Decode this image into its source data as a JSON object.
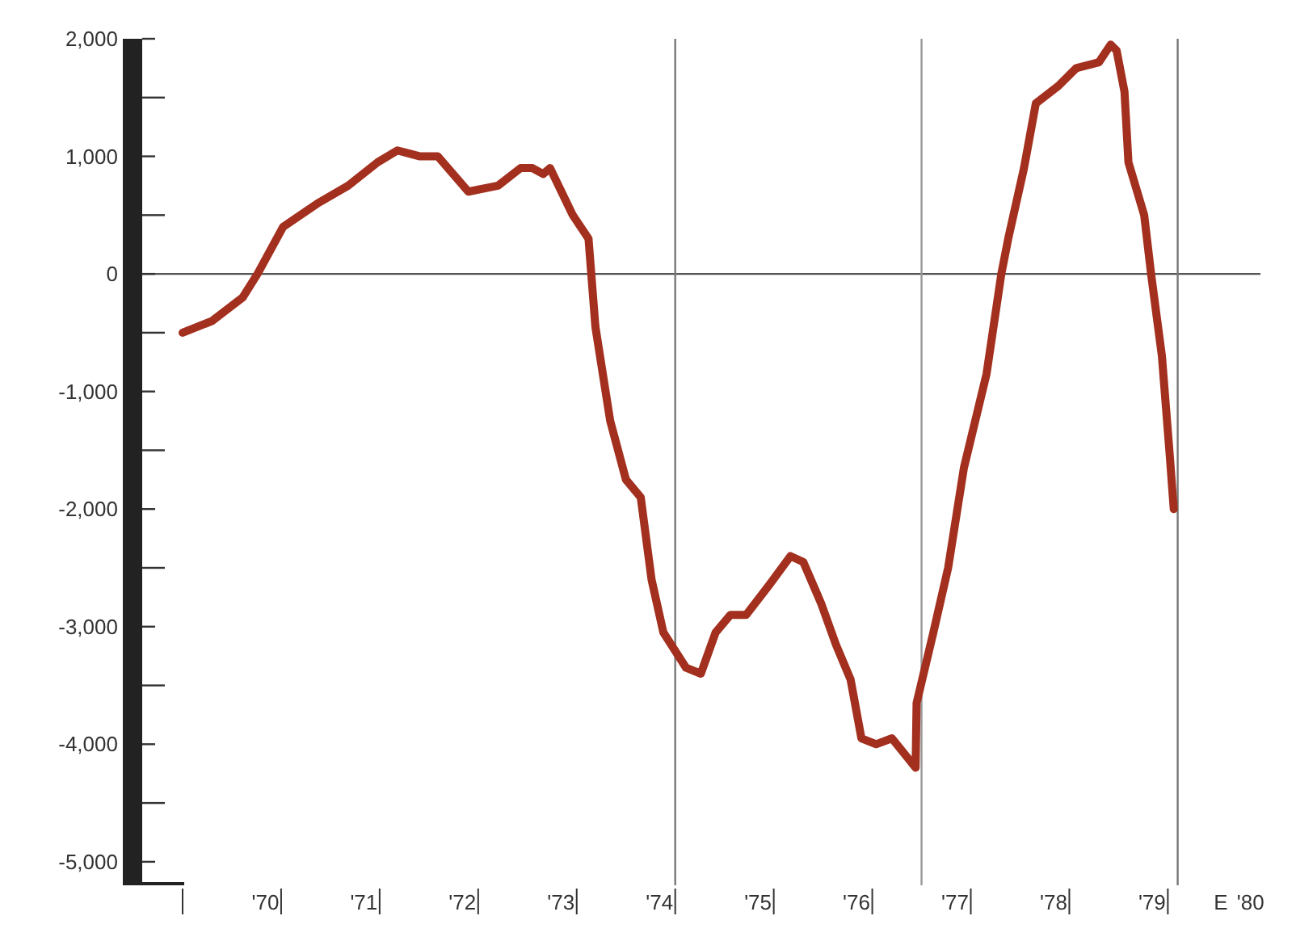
{
  "chart_data": {
    "type": "line",
    "x": [
      1969.16,
      1969.46,
      1969.77,
      1969.92,
      1970.18,
      1970.53,
      1970.84,
      1971.14,
      1971.34,
      1971.57,
      1971.75,
      1972.06,
      1972.36,
      1972.59,
      1972.71,
      1972.82,
      1972.89,
      1973.12,
      1973.28,
      1973.35,
      1973.5,
      1973.66,
      1973.81,
      1973.92,
      1974.04,
      1974.27,
      1974.42,
      1974.57,
      1974.72,
      1974.88,
      1975.11,
      1975.33,
      1975.46,
      1975.64,
      1975.79,
      1975.94,
      1976.05,
      1976.2,
      1976.36,
      1976.6,
      1976.61,
      1976.78,
      1976.93,
      1977.09,
      1977.32,
      1977.47,
      1977.54,
      1977.7,
      1977.82,
      1978.05,
      1978.23,
      1978.46,
      1978.58,
      1978.64,
      1978.72,
      1978.76,
      1978.92,
      1978.99,
      1979.1,
      1979.18,
      1979.22
    ],
    "series": [
      {
        "color": "#a3301f",
        "values": [
          -500,
          -400,
          -200,
          0,
          400,
          600,
          750,
          950,
          1050,
          1000,
          1000,
          700,
          750,
          900,
          900,
          850,
          900,
          500,
          300,
          -450,
          -1250,
          -1750,
          -1900,
          -2600,
          -3050,
          -3350,
          -3400,
          -3050,
          -2900,
          -2900,
          -2650,
          -2400,
          -2450,
          -2800,
          -3150,
          -3450,
          -3950,
          -4000,
          -3950,
          -4200,
          -3650,
          -3050,
          -2500,
          -1650,
          -850,
          0,
          300,
          900,
          1450,
          1600,
          1750,
          1800,
          1950,
          1900,
          1550,
          950,
          500,
          0,
          -700,
          -1550,
          -2000
        ]
      }
    ],
    "xlim": [
      1968.75,
      1980.1
    ],
    "xticks": [
      {
        "value": 1969.16,
        "label": null
      },
      {
        "value": 1970,
        "label": "'70"
      },
      {
        "value": 1970.16,
        "label": null
      },
      {
        "value": 1971,
        "label": "'71"
      },
      {
        "value": 1971.16,
        "label": null
      },
      {
        "value": 1972,
        "label": "'72"
      },
      {
        "value": 1972.16,
        "label": null
      },
      {
        "value": 1973,
        "label": "'73"
      },
      {
        "value": 1973.16,
        "label": null
      },
      {
        "value": 1974,
        "label": "'74"
      },
      {
        "value": 1974.16,
        "label": null
      },
      {
        "value": 1975,
        "label": "'75"
      },
      {
        "value": 1975.16,
        "label": null
      },
      {
        "value": 1976,
        "label": "'76"
      },
      {
        "value": 1976.16,
        "label": null
      },
      {
        "value": 1977,
        "label": "'77"
      },
      {
        "value": 1977.16,
        "label": null
      },
      {
        "value": 1978,
        "label": "'78"
      },
      {
        "value": 1978.16,
        "label": null
      },
      {
        "value": 1979,
        "label": "'79"
      },
      {
        "value": 1979.16,
        "label": null
      },
      {
        "value": 1980,
        "label": "'80"
      }
    ],
    "annotations": [
      "E"
    ],
    "ylim": [
      -5200,
      2000
    ],
    "yticks": [
      {
        "value": 2000,
        "label": "2,000"
      },
      {
        "value": 1500,
        "label": null
      },
      {
        "value": 1000,
        "label": "1,000"
      },
      {
        "value": 500,
        "label": null
      },
      0,
      {
        "value": -500,
        "label": null
      },
      {
        "value": -1000,
        "label": "-1,000"
      },
      {
        "value": -1500,
        "label": null
      },
      {
        "value": -2000,
        "label": "-2,000"
      },
      {
        "value": -2500,
        "label": null
      },
      {
        "value": -3000,
        "label": "-3,000"
      },
      {
        "value": -3500,
        "label": null
      },
      {
        "value": -4000,
        "label": "-4,000"
      },
      {
        "value": -4500,
        "label": null
      },
      {
        "value": -5000,
        "label": "-5,000"
      }
    ],
    "ref_lines": [
      {
        "axis": "y",
        "value": 0,
        "color": "#555555"
      },
      {
        "axis": "x",
        "value": 1974.16,
        "color": "#777777"
      },
      {
        "axis": "x",
        "value": 1976.66,
        "color": "#999999"
      },
      {
        "axis": "x",
        "value": 1979.26,
        "color": "#777777"
      }
    ],
    "grid": false,
    "marker": "none",
    "line_style": "solid"
  }
}
